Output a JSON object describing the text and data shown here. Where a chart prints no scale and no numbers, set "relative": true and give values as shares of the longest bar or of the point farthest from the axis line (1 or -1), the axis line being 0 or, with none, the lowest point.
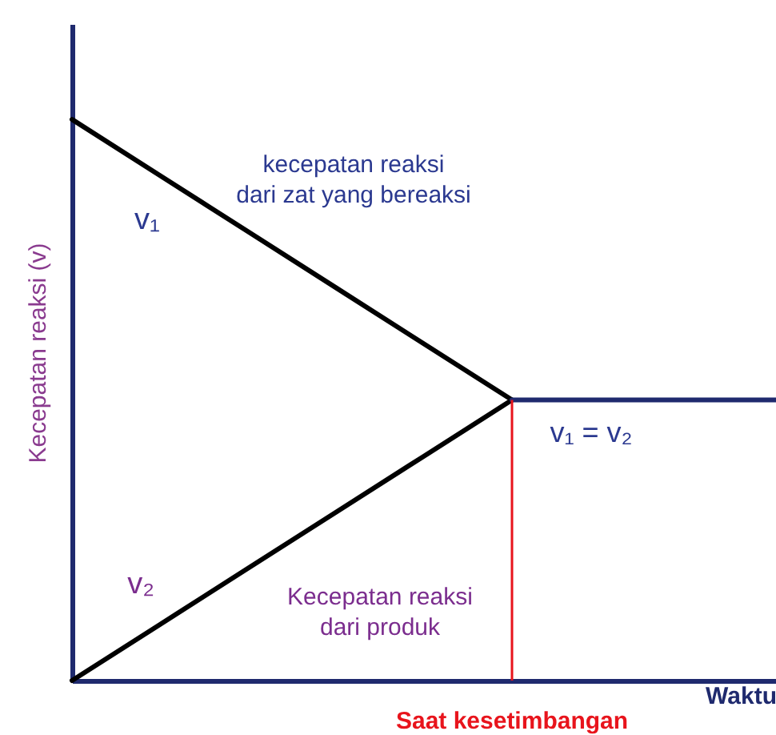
{
  "chart_data": {
    "type": "line",
    "relative": true,
    "xlabel": "Waktu",
    "ylabel": "Kecepatan reaksi (v)",
    "categories": [
      null,
      null,
      null,
      null,
      null,
      null,
      null,
      null,
      null
    ],
    "series": [
      {
        "name": "v₁",
        "color": "#000000",
        "values": [
          1,
          0.9,
          0.8,
          0.7,
          0.6,
          0.5,
          null,
          null,
          null
        ]
      },
      {
        "name": "v₂",
        "color": "#000000",
        "values": [
          0,
          0.1,
          0.2,
          0.3,
          0.4,
          0.5,
          null,
          null,
          null
        ]
      },
      {
        "color": "#1f2a6e",
        "values": [
          null,
          null,
          null,
          null,
          null,
          0.5,
          0.5,
          0.5,
          0.5
        ]
      }
    ],
    "ref_lines": [
      {
        "axis": "x",
        "label": "Saat kesetimbangan",
        "color": "#e8141c"
      }
    ],
    "annotations": [
      "kecepatan reaksi\ndari zat yang bereaksi",
      "v₁ = v₂",
      "Kecepatan reaksi\ndari produk"
    ]
  }
}
